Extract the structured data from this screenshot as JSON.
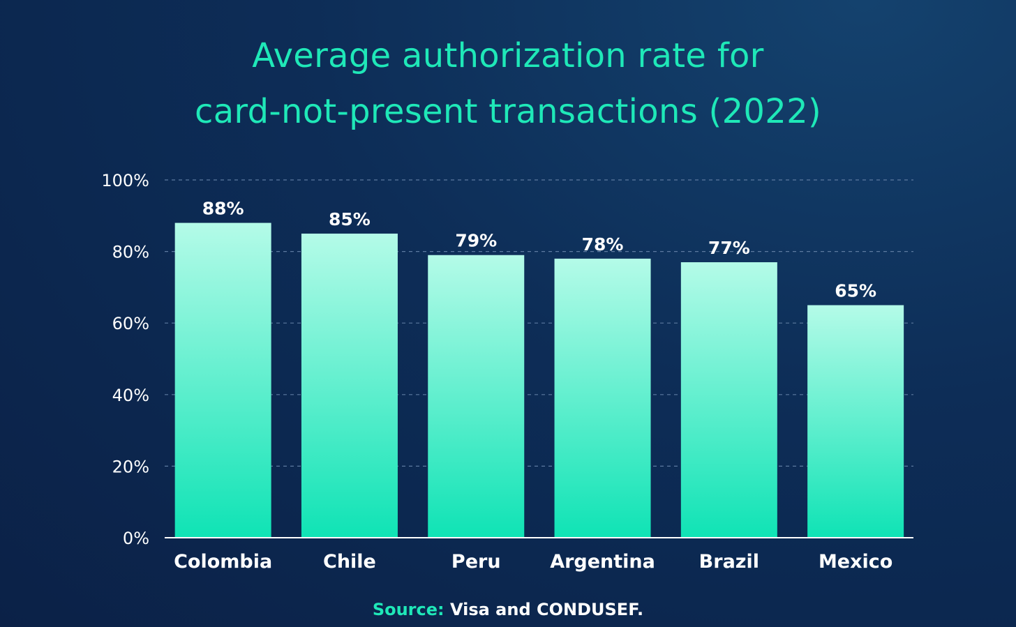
{
  "chart_data": {
    "type": "bar",
    "title_lines": [
      "Average authorization rate for",
      "card-not-present transactions (2022)"
    ],
    "categories": [
      "Colombia",
      "Chile",
      "Peru",
      "Argentina",
      "Brazil",
      "Mexico"
    ],
    "values": [
      88,
      85,
      79,
      78,
      77,
      65
    ],
    "data_labels": [
      "88%",
      "85%",
      "79%",
      "78%",
      "77%",
      "65%"
    ],
    "yticks": [
      0,
      20,
      40,
      60,
      80,
      100
    ],
    "ytick_labels": [
      "0%",
      "20%",
      "40%",
      "60%",
      "80%",
      "100%"
    ],
    "ylim": [
      0,
      100
    ],
    "xlabel": "",
    "ylabel": "",
    "grid": true,
    "legend": "none"
  },
  "source": {
    "label": "Source:",
    "text": "Visa and CONDUSEF."
  },
  "colors": {
    "title": "#1fe8b8",
    "bar_top": "#b4fbe8",
    "bar_bottom": "#0fe3b5",
    "text": "#ffffff",
    "grid": "#5d7aa0"
  }
}
